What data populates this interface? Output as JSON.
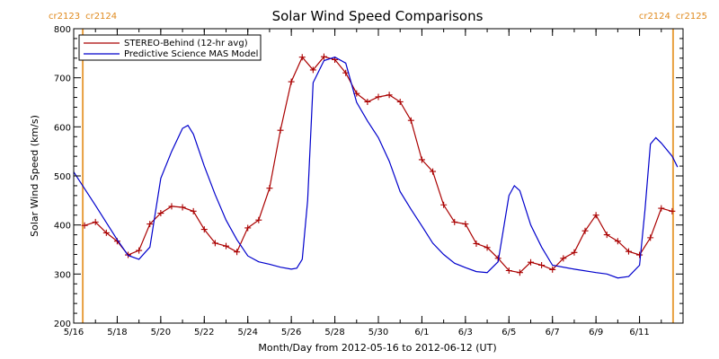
{
  "chart_data": {
    "type": "line",
    "title": "Solar Wind Speed Comparisons",
    "xlabel": "Month/Day from 2012-05-16 to 2012-06-12 (UT)",
    "ylabel": "Solar Wind Speed (km/s)",
    "ylim": [
      200,
      800
    ],
    "xlim": [
      "2012-05-16",
      "2012-06-12"
    ],
    "y_ticks": [
      "200",
      "300",
      "400",
      "500",
      "600",
      "700",
      "800"
    ],
    "x_ticks": [
      {
        "date": "2012-05-16",
        "label": "5/16"
      },
      {
        "date": "2012-05-18",
        "label": "5/18"
      },
      {
        "date": "2012-05-20",
        "label": "5/20"
      },
      {
        "date": "2012-05-22",
        "label": "5/22"
      },
      {
        "date": "2012-05-24",
        "label": "5/24"
      },
      {
        "date": "2012-05-26",
        "label": "5/26"
      },
      {
        "date": "2012-05-28",
        "label": "5/28"
      },
      {
        "date": "2012-05-30",
        "label": "5/30"
      },
      {
        "date": "2012-06-01",
        "label": "6/1"
      },
      {
        "date": "2012-06-03",
        "label": "6/3"
      },
      {
        "date": "2012-06-05",
        "label": "6/5"
      },
      {
        "date": "2012-06-07",
        "label": "6/7"
      },
      {
        "date": "2012-06-09",
        "label": "6/9"
      },
      {
        "date": "2012-06-11",
        "label": "6/11"
      }
    ],
    "carrington_markers": [
      {
        "date": "2012-05-16T10:00",
        "left_label": "cr2123",
        "right_label": "cr2124"
      },
      {
        "date": "2012-06-12T13:00",
        "left_label": "cr2124",
        "right_label": "cr2125"
      }
    ],
    "legend_position": "top-left",
    "grid": false,
    "series": [
      {
        "name": "STEREO-Behind (12-hr avg)",
        "color": "#aa0000",
        "marker": "plus",
        "points": [
          [
            "2012-05-16T12:00",
            399
          ],
          [
            "2012-05-17T00:00",
            406
          ],
          [
            "2012-05-17T12:00",
            384
          ],
          [
            "2012-05-18T00:00",
            367
          ],
          [
            "2012-05-18T12:00",
            339
          ],
          [
            "2012-05-19T00:00",
            348
          ],
          [
            "2012-05-19T12:00",
            402
          ],
          [
            "2012-05-20T00:00",
            424
          ],
          [
            "2012-05-20T12:00",
            438
          ],
          [
            "2012-05-21T00:00",
            436
          ],
          [
            "2012-05-21T12:00",
            428
          ],
          [
            "2012-05-22T00:00",
            391
          ],
          [
            "2012-05-22T12:00",
            363
          ],
          [
            "2012-05-23T00:00",
            357
          ],
          [
            "2012-05-23T12:00",
            345
          ],
          [
            "2012-05-24T00:00",
            394
          ],
          [
            "2012-05-24T12:00",
            410
          ],
          [
            "2012-05-25T00:00",
            475
          ],
          [
            "2012-05-25T12:00",
            593
          ],
          [
            "2012-05-26T00:00",
            692
          ],
          [
            "2012-05-26T12:00",
            742
          ],
          [
            "2012-05-27T00:00",
            716
          ],
          [
            "2012-05-27T12:00",
            743
          ],
          [
            "2012-05-28T00:00",
            737
          ],
          [
            "2012-05-28T12:00",
            710
          ],
          [
            "2012-05-29T00:00",
            668
          ],
          [
            "2012-05-29T12:00",
            651
          ],
          [
            "2012-05-30T00:00",
            661
          ],
          [
            "2012-05-30T12:00",
            665
          ],
          [
            "2012-05-31T00:00",
            651
          ],
          [
            "2012-05-31T12:00",
            613
          ],
          [
            "2012-06-01T00:00",
            533
          ],
          [
            "2012-06-01T12:00",
            509
          ],
          [
            "2012-06-02T00:00",
            441
          ],
          [
            "2012-06-02T12:00",
            406
          ],
          [
            "2012-06-03T00:00",
            402
          ],
          [
            "2012-06-03T12:00",
            362
          ],
          [
            "2012-06-04T00:00",
            354
          ],
          [
            "2012-06-04T12:00",
            332
          ],
          [
            "2012-06-05T00:00",
            307
          ],
          [
            "2012-06-05T12:00",
            303
          ],
          [
            "2012-06-06T00:00",
            324
          ],
          [
            "2012-06-06T12:00",
            318
          ],
          [
            "2012-06-07T00:00",
            309
          ],
          [
            "2012-06-07T12:00",
            332
          ],
          [
            "2012-06-08T00:00",
            344
          ],
          [
            "2012-06-08T12:00",
            388
          ],
          [
            "2012-06-09T00:00",
            420
          ],
          [
            "2012-06-09T12:00",
            380
          ],
          [
            "2012-06-10T00:00",
            367
          ],
          [
            "2012-06-10T12:00",
            346
          ],
          [
            "2012-06-11T00:00",
            339
          ],
          [
            "2012-06-11T12:00",
            374
          ],
          [
            "2012-06-12T00:00",
            434
          ],
          [
            "2012-06-12T12:00",
            428
          ]
        ]
      },
      {
        "name": "Predictive Science MAS Model",
        "color": "#0000cc",
        "marker": "none",
        "points": [
          [
            "2012-05-16T00:00",
            508
          ],
          [
            "2012-05-17T00:00",
            440
          ],
          [
            "2012-05-18T00:00",
            370
          ],
          [
            "2012-05-18T12:00",
            338
          ],
          [
            "2012-05-19T00:00",
            330
          ],
          [
            "2012-05-19T12:00",
            355
          ],
          [
            "2012-05-20T00:00",
            495
          ],
          [
            "2012-05-20T12:00",
            550
          ],
          [
            "2012-05-21T00:00",
            597
          ],
          [
            "2012-05-21T06:00",
            603
          ],
          [
            "2012-05-21T12:00",
            585
          ],
          [
            "2012-05-22T00:00",
            520
          ],
          [
            "2012-05-22T12:00",
            462
          ],
          [
            "2012-05-23T00:00",
            410
          ],
          [
            "2012-05-23T12:00",
            370
          ],
          [
            "2012-05-24T00:00",
            337
          ],
          [
            "2012-05-24T12:00",
            325
          ],
          [
            "2012-05-25T00:00",
            320
          ],
          [
            "2012-05-25T12:00",
            314
          ],
          [
            "2012-05-26T00:00",
            310
          ],
          [
            "2012-05-26T06:00",
            312
          ],
          [
            "2012-05-26T12:00",
            330
          ],
          [
            "2012-05-26T18:00",
            450
          ],
          [
            "2012-05-27T00:00",
            690
          ],
          [
            "2012-05-27T12:00",
            735
          ],
          [
            "2012-05-28T00:00",
            742
          ],
          [
            "2012-05-28T12:00",
            730
          ],
          [
            "2012-05-29T00:00",
            650
          ],
          [
            "2012-05-29T12:00",
            612
          ],
          [
            "2012-05-30T00:00",
            578
          ],
          [
            "2012-05-30T12:00",
            530
          ],
          [
            "2012-05-31T00:00",
            468
          ],
          [
            "2012-05-31T12:00",
            432
          ],
          [
            "2012-06-01T00:00",
            398
          ],
          [
            "2012-06-01T12:00",
            363
          ],
          [
            "2012-06-02T00:00",
            340
          ],
          [
            "2012-06-02T12:00",
            322
          ],
          [
            "2012-06-03T00:00",
            313
          ],
          [
            "2012-06-03T12:00",
            305
          ],
          [
            "2012-06-04T00:00",
            303
          ],
          [
            "2012-06-04T12:00",
            325
          ],
          [
            "2012-06-05T00:00",
            460
          ],
          [
            "2012-06-05T06:00",
            480
          ],
          [
            "2012-06-05T12:00",
            470
          ],
          [
            "2012-06-06T00:00",
            400
          ],
          [
            "2012-06-06T12:00",
            355
          ],
          [
            "2012-06-07T00:00",
            318
          ],
          [
            "2012-06-08T00:00",
            310
          ],
          [
            "2012-06-09T00:00",
            303
          ],
          [
            "2012-06-09T12:00",
            300
          ],
          [
            "2012-06-10T00:00",
            292
          ],
          [
            "2012-06-10T12:00",
            295
          ],
          [
            "2012-06-11T00:00",
            318
          ],
          [
            "2012-06-11T06:00",
            430
          ],
          [
            "2012-06-11T12:00",
            565
          ],
          [
            "2012-06-11T18:00",
            578
          ],
          [
            "2012-06-12T00:00",
            567
          ],
          [
            "2012-06-12T12:00",
            540
          ],
          [
            "2012-06-12T18:00",
            518
          ]
        ]
      }
    ]
  }
}
